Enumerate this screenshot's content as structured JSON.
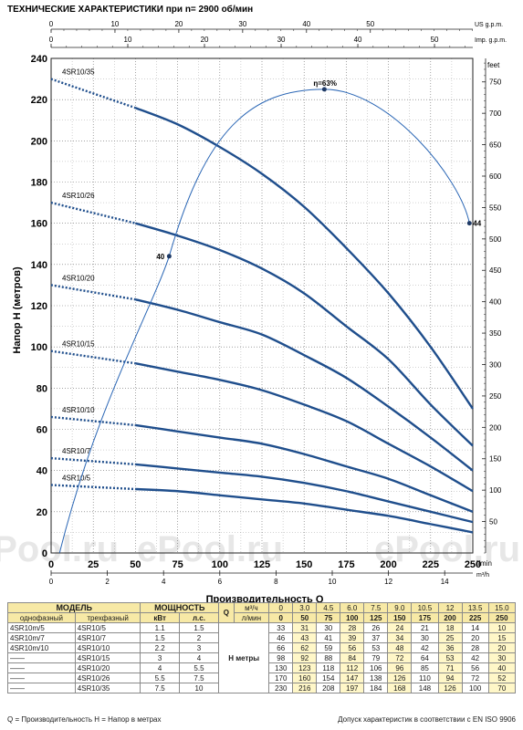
{
  "title": "ТЕХНИЧЕСКИЕ ХАРАКТЕРИСТИКИ при n= 2900 об/мин",
  "chart_data": {
    "type": "line",
    "title": "ТЕХНИЧЕСКИЕ ХАРАКТЕРИСТИКИ при n= 2900 об/мин",
    "xlabel": "Производительность  Q",
    "ylabel": "Напор  H   (метров)",
    "xlim": [
      0,
      250
    ],
    "ylim": [
      0,
      240
    ],
    "x_ticks": [
      "0",
      "25",
      "50",
      "75",
      "100",
      "125",
      "150",
      "175",
      "200",
      "225",
      "250"
    ],
    "x_unit": "l/min",
    "x2_ticks": [
      "0",
      "2",
      "4",
      "6",
      "8",
      "10",
      "12",
      "14"
    ],
    "x2_unit": "m³/h",
    "y_ticks": [
      "0",
      "20",
      "40",
      "60",
      "80",
      "100",
      "120",
      "140",
      "160",
      "180",
      "200",
      "220",
      "240"
    ],
    "y2_ticks": [
      "50",
      "100",
      "150",
      "200",
      "250",
      "300",
      "350",
      "400",
      "450",
      "500",
      "550",
      "600",
      "650",
      "700",
      "750"
    ],
    "y2_unit": "feet",
    "top_us_ticks": [
      "0",
      "10",
      "20",
      "30",
      "40",
      "50"
    ],
    "top_us_unit": "US g.p.m.",
    "top_imp_ticks": [
      "0",
      "10",
      "20",
      "30",
      "40",
      "50"
    ],
    "top_imp_unit": "Imp. g.p.m.",
    "grid": true,
    "x": [
      0,
      50,
      75,
      100,
      125,
      150,
      175,
      200,
      225,
      250
    ],
    "series": [
      {
        "name": "4SR10/35",
        "values": [
          230,
          216,
          208,
          197,
          184,
          168,
          148,
          126,
          100,
          70
        ]
      },
      {
        "name": "4SR10/26",
        "values": [
          170,
          160,
          154,
          147,
          138,
          126,
          110,
          94,
          72,
          52
        ]
      },
      {
        "name": "4SR10/20",
        "values": [
          130,
          123,
          118,
          112,
          106,
          96,
          85,
          71,
          56,
          40
        ]
      },
      {
        "name": "4SR10/15",
        "values": [
          98,
          92,
          88,
          84,
          79,
          72,
          64,
          53,
          42,
          30
        ]
      },
      {
        "name": "4SR10/10",
        "values": [
          66,
          62,
          59,
          56,
          53,
          48,
          42,
          36,
          28,
          20
        ]
      },
      {
        "name": "4SR10/7",
        "values": [
          46,
          43,
          41,
          39,
          37,
          34,
          30,
          25,
          20,
          15
        ]
      },
      {
        "name": "4SR10/5",
        "values": [
          33,
          31,
          30,
          28,
          26,
          24,
          21,
          18,
          14,
          10
        ]
      }
    ],
    "efficiency": {
      "label_peak": "η=63%",
      "peak_q": 162,
      "peak_h": 225,
      "left_label": "40",
      "left_q": 70,
      "left_h": 144,
      "right_label": "44",
      "right_q": 248,
      "right_h": 160
    }
  },
  "table": {
    "model_header": "МОДЕЛЬ",
    "power_header": "МОЩНОСТЬ",
    "single_phase": "однофазный",
    "three_phase": "трехфазный",
    "kw": "кВт",
    "hp": "л.с.",
    "q_label": "Q",
    "m3h": "м³/ч",
    "lmin": "л/мин",
    "h_label": "H метры",
    "q_m3h": [
      "0",
      "3.0",
      "4.5",
      "6.0",
      "7.5",
      "9.0",
      "10.5",
      "12",
      "13.5",
      "15.0"
    ],
    "q_lmin": [
      "0",
      "50",
      "75",
      "100",
      "125",
      "150",
      "175",
      "200",
      "225",
      "250"
    ],
    "rows": [
      {
        "single": "4SR10m/5",
        "three": "4SR10/5",
        "kw": "1.1",
        "hp": "1.5",
        "h": [
          "33",
          "31",
          "30",
          "28",
          "26",
          "24",
          "21",
          "18",
          "14",
          "10"
        ]
      },
      {
        "single": "4SR10m/7",
        "three": "4SR10/7",
        "kw": "1.5",
        "hp": "2",
        "h": [
          "46",
          "43",
          "41",
          "39",
          "37",
          "34",
          "30",
          "25",
          "20",
          "15"
        ]
      },
      {
        "single": "4SR10m/10",
        "three": "4SR10/10",
        "kw": "2.2",
        "hp": "3",
        "h": [
          "66",
          "62",
          "59",
          "56",
          "53",
          "48",
          "42",
          "36",
          "28",
          "20"
        ]
      },
      {
        "single": "——",
        "three": "4SR10/15",
        "kw": "3",
        "hp": "4",
        "h": [
          "98",
          "92",
          "88",
          "84",
          "79",
          "72",
          "64",
          "53",
          "42",
          "30"
        ]
      },
      {
        "single": "——",
        "three": "4SR10/20",
        "kw": "4",
        "hp": "5.5",
        "h": [
          "130",
          "123",
          "118",
          "112",
          "106",
          "96",
          "85",
          "71",
          "56",
          "40"
        ]
      },
      {
        "single": "——",
        "three": "4SR10/26",
        "kw": "5.5",
        "hp": "7.5",
        "h": [
          "170",
          "160",
          "154",
          "147",
          "138",
          "126",
          "110",
          "94",
          "72",
          "52"
        ]
      },
      {
        "single": "——",
        "three": "4SR10/35",
        "kw": "7.5",
        "hp": "10",
        "h": [
          "230",
          "216",
          "208",
          "197",
          "184",
          "168",
          "148",
          "126",
          "100",
          "70"
        ]
      }
    ]
  },
  "footer": {
    "left": "Q = Производительность   H = Напор в метрах",
    "right": "Допуск характеристик в соответствии с EN ISO 9906"
  },
  "watermarks": [
    "ePool.ru",
    "ePool.ru",
    "ePool.ru"
  ],
  "colors": {
    "curve": "#1f4e8c",
    "efficiency": "#2a66b5",
    "grid": "#6a6a6a",
    "header_bg": "#f7e9a6"
  }
}
